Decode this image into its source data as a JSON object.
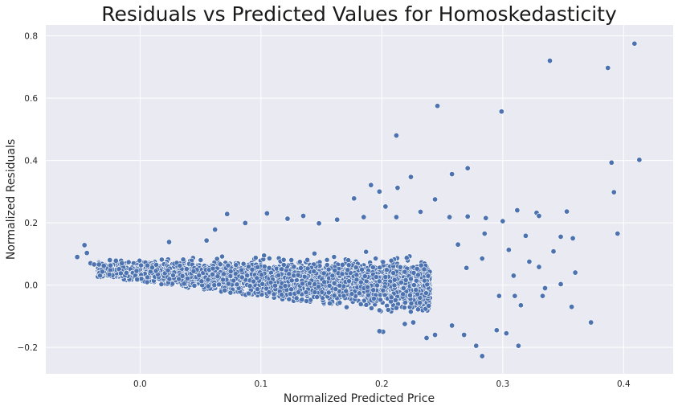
{
  "chart_data": {
    "type": "scatter",
    "title": "Residuals vs Predicted Values for Homoskedasticity",
    "xlabel": "Normalized Predicted Price",
    "ylabel": "Normalized Residuals",
    "xlim": [
      -0.078,
      0.441
    ],
    "ylim": [
      -0.285,
      0.835
    ],
    "x_ticks": [
      0.0,
      0.1,
      0.2,
      0.3,
      0.4
    ],
    "x_tick_labels": [
      "0.0",
      "0.1",
      "0.2",
      "0.3",
      "0.4"
    ],
    "y_ticks": [
      -0.2,
      0.0,
      0.2,
      0.4,
      0.6,
      0.8
    ],
    "y_tick_labels": [
      "−0.2",
      "0.0",
      "0.2",
      "0.4",
      "0.6",
      "0.8"
    ],
    "grid": true,
    "background": "#eaeaf2",
    "point_color": "#4c72b0",
    "series": [
      {
        "points": [
          [
            0.409,
            0.775
          ],
          [
            0.339,
            0.72
          ],
          [
            0.387,
            0.697
          ],
          [
            0.246,
            0.575
          ],
          [
            0.299,
            0.557
          ],
          [
            0.212,
            0.48
          ],
          [
            0.39,
            0.393
          ],
          [
            0.413,
            0.402
          ],
          [
            0.271,
            0.375
          ],
          [
            0.258,
            0.356
          ],
          [
            0.224,
            0.347
          ],
          [
            0.392,
            0.298
          ],
          [
            0.191,
            0.321
          ],
          [
            0.213,
            0.312
          ],
          [
            0.198,
            0.3
          ],
          [
            0.177,
            0.278
          ],
          [
            0.244,
            0.275
          ],
          [
            0.203,
            0.252
          ],
          [
            0.232,
            0.235
          ],
          [
            0.353,
            0.236
          ],
          [
            0.072,
            0.228
          ],
          [
            0.105,
            0.23
          ],
          [
            0.135,
            0.222
          ],
          [
            0.163,
            0.21
          ],
          [
            0.185,
            0.218
          ],
          [
            0.212,
            0.218
          ],
          [
            0.271,
            0.22
          ],
          [
            0.312,
            0.24
          ],
          [
            0.328,
            0.232
          ],
          [
            0.395,
            0.165
          ],
          [
            0.286,
            0.215
          ],
          [
            0.3,
            0.205
          ],
          [
            0.062,
            0.178
          ],
          [
            0.087,
            0.199
          ],
          [
            0.122,
            0.213
          ],
          [
            0.148,
            0.198
          ],
          [
            0.256,
            0.218
          ],
          [
            0.024,
            0.138
          ],
          [
            0.055,
            0.143
          ],
          [
            0.33,
            0.222
          ],
          [
            0.285,
            0.165
          ],
          [
            0.319,
            0.158
          ],
          [
            0.348,
            0.155
          ],
          [
            0.358,
            0.15
          ],
          [
            0.263,
            0.13
          ],
          [
            0.305,
            0.113
          ],
          [
            0.342,
            0.108
          ],
          [
            0.36,
            0.04
          ],
          [
            0.33,
            0.058
          ],
          [
            0.348,
            0.003
          ],
          [
            0.309,
            0.03
          ],
          [
            0.297,
            -0.035
          ],
          [
            0.315,
            -0.065
          ],
          [
            0.333,
            -0.035
          ],
          [
            0.357,
            -0.07
          ],
          [
            0.373,
            -0.12
          ],
          [
            0.303,
            -0.155
          ],
          [
            0.295,
            -0.145
          ],
          [
            0.313,
            -0.195
          ],
          [
            0.278,
            -0.195
          ],
          [
            0.283,
            -0.228
          ],
          [
            0.268,
            -0.16
          ],
          [
            0.258,
            -0.13
          ],
          [
            0.237,
            -0.17
          ],
          [
            0.244,
            -0.16
          ],
          [
            0.226,
            -0.12
          ],
          [
            0.219,
            -0.125
          ],
          [
            0.201,
            -0.15
          ],
          [
            0.198,
            -0.148
          ],
          [
            0.31,
            -0.035
          ],
          [
            0.335,
            -0.01
          ],
          [
            0.322,
            0.075
          ],
          [
            0.283,
            0.085
          ],
          [
            0.27,
            0.055
          ],
          [
            -0.052,
            0.09
          ],
          [
            -0.046,
            0.128
          ],
          [
            -0.044,
            0.103
          ],
          [
            -0.041,
            0.07
          ],
          [
            -0.038,
            0.066
          ],
          [
            -0.034,
            0.066
          ],
          [
            -0.03,
            0.062
          ],
          [
            -0.025,
            0.08
          ],
          [
            -0.02,
            0.078
          ],
          [
            -0.015,
            0.07
          ]
        ]
      }
    ]
  }
}
